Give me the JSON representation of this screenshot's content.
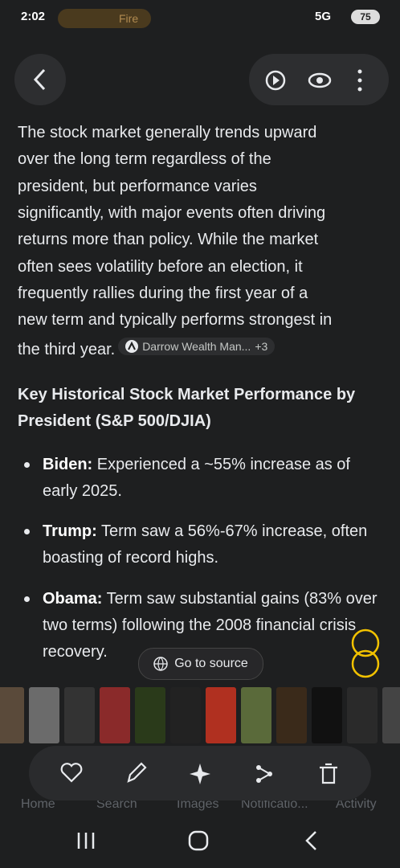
{
  "status_bar": {
    "time": "2:02",
    "app_chip": "Fire",
    "network": "5G",
    "battery": "75"
  },
  "overview": {
    "paragraph_lines": [
      "The stock market generally trends upward",
      "over the long term regardless of the",
      "president, but performance varies",
      "significantly, with major events often driving",
      "returns more than policy. While the market",
      "often sees volatility before an election, it",
      "frequently rallies during the first year of a",
      "new term and typically performs strongest in",
      "the third year."
    ],
    "source_chip": {
      "name": "Darrow Wealth Man...",
      "more": "+3"
    },
    "heading": "Key Historical Stock Market Performance by President (S&P 500/DJIA)",
    "bullets": [
      {
        "name": "Biden:",
        "text": "Experienced a ~55% increase as of early 2025."
      },
      {
        "name": "Trump:",
        "text": "Term saw a 56%-67% increase, often boasting of record highs."
      },
      {
        "name": "Obama:",
        "text": "Term saw substantial gains (83% over two terms) following the 2008 financial crisis recovery."
      }
    ]
  },
  "go_to_source": "Go to source",
  "bottom_nav": [
    "Home",
    "Search",
    "Images",
    "Notificatio...",
    "Activity"
  ]
}
